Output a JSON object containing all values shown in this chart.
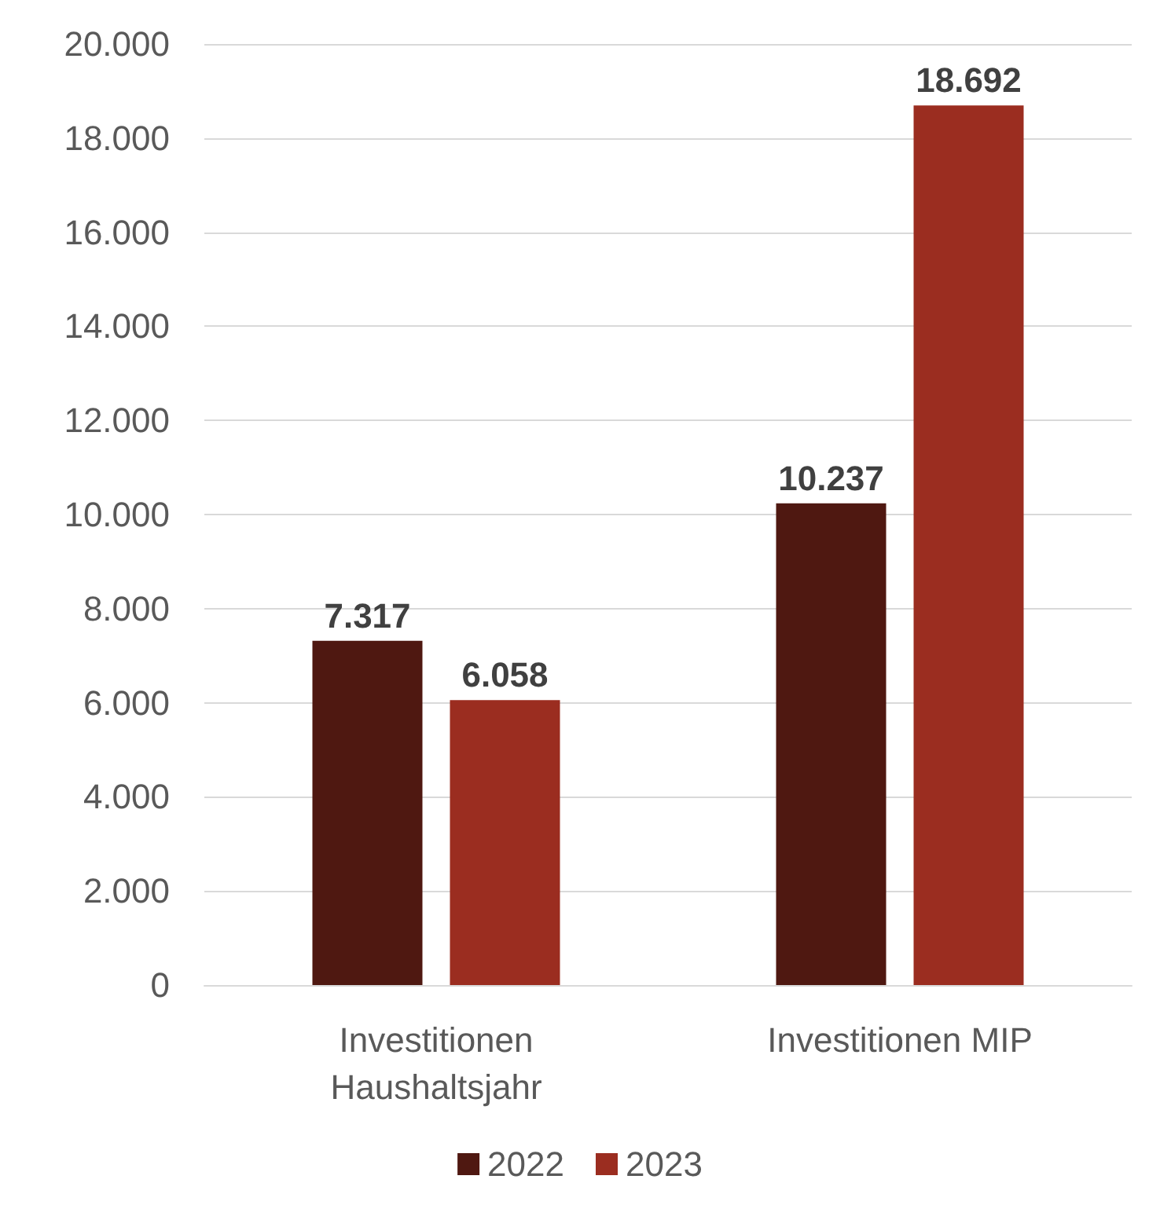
{
  "chart_data": {
    "type": "bar",
    "categories": [
      "Investitionen\nHaushaltsjahr",
      "Investitionen MIP"
    ],
    "series": [
      {
        "name": "2022",
        "color": "#4f1811",
        "values": [
          7317,
          10237
        ],
        "value_labels": [
          "7.317",
          "10.237"
        ]
      },
      {
        "name": "2023",
        "color": "#9b2d20",
        "values": [
          6058,
          18692
        ],
        "value_labels": [
          "6.058",
          "18.692"
        ]
      }
    ],
    "ylim": [
      0,
      20000
    ],
    "yticks": [
      {
        "value": 0,
        "label": "0"
      },
      {
        "value": 2000,
        "label": "2.000"
      },
      {
        "value": 4000,
        "label": "4.000"
      },
      {
        "value": 6000,
        "label": "6.000"
      },
      {
        "value": 8000,
        "label": "8.000"
      },
      {
        "value": 10000,
        "label": "10.000"
      },
      {
        "value": 12000,
        "label": "12.000"
      },
      {
        "value": 14000,
        "label": "14.000"
      },
      {
        "value": 16000,
        "label": "16.000"
      },
      {
        "value": 18000,
        "label": "18.000"
      },
      {
        "value": 20000,
        "label": "20.000"
      }
    ],
    "grid": "y",
    "legend": "bottom"
  }
}
